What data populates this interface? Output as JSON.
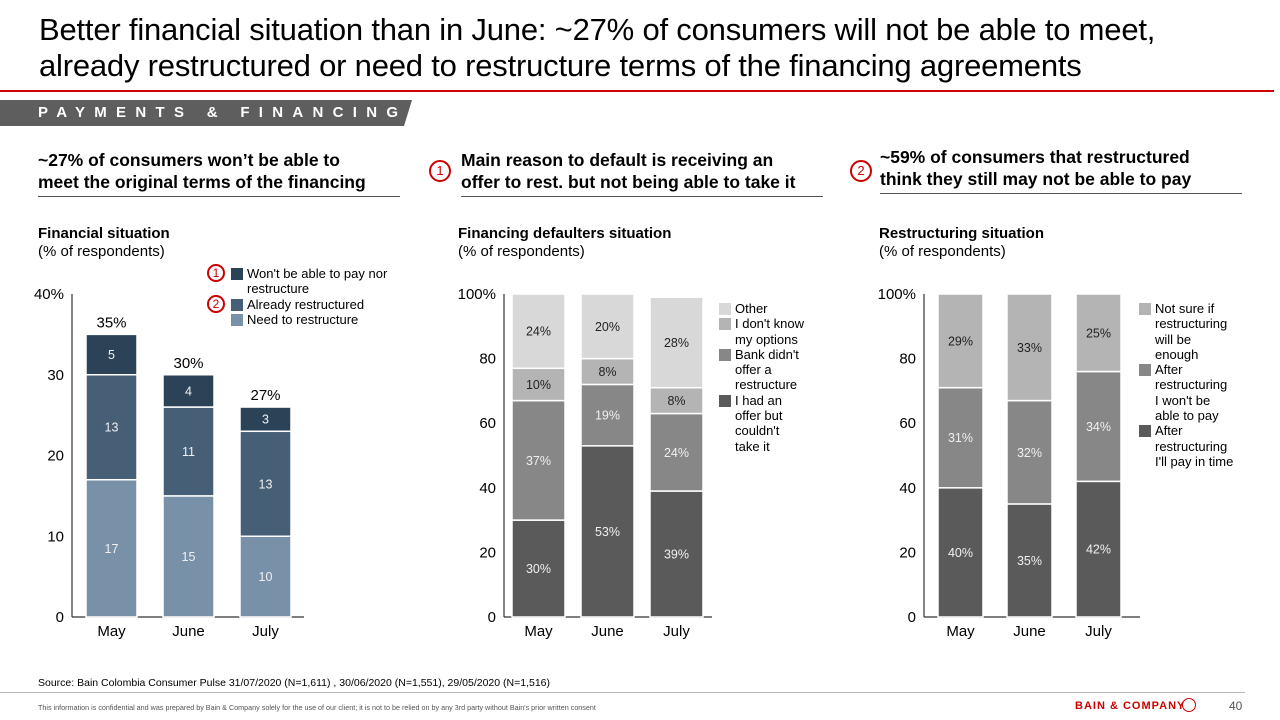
{
  "header": {
    "title_line1": "Better financial situation than in June: ~27% of consumers will not be able to meet,",
    "title_line2": "already restructured or need to restructure terms of the financing agreements",
    "section_tag": "PAYMENTS & FINANCING",
    "accent_color": "#cc0000"
  },
  "panels": [
    {
      "headline_line1": "~27% of consumers won’t be able to",
      "headline_line2": "meet the original terms of the financing",
      "badge": ""
    },
    {
      "headline_line1": "Main reason to default is receiving an",
      "headline_line2": "offer to rest. but not being able to take it",
      "badge": "1"
    },
    {
      "headline_line1": "~59% of consumers that restructured",
      "headline_line2": "think they still may not be able to pay",
      "badge": "2"
    }
  ],
  "chart_data": [
    {
      "type": "bar",
      "stacked": true,
      "title": "Financial situation",
      "subtitle": "(% of respondents)",
      "categories": [
        "May",
        "June",
        "July"
      ],
      "ylim": [
        0,
        40
      ],
      "yticks": [
        "0",
        "10",
        "20",
        "30",
        "40%"
      ],
      "totals": [
        "35%",
        "30%",
        "27%"
      ],
      "series": [
        {
          "name": "Need to restructure",
          "values": [
            17,
            15,
            10
          ],
          "labels": [
            "17",
            "15",
            "10"
          ],
          "color": "#7890a8",
          "badge": ""
        },
        {
          "name": "Already restructured",
          "values": [
            13,
            11,
            13
          ],
          "labels": [
            "13",
            "11",
            "13"
          ],
          "color": "#465f77",
          "badge": "2"
        },
        {
          "name": "Won't be able to pay nor restructure",
          "values": [
            5,
            4,
            3
          ],
          "labels": [
            "5",
            "4",
            "3"
          ],
          "color": "#2c4357",
          "badge": "1"
        }
      ],
      "legend_position": "top-right"
    },
    {
      "type": "bar",
      "stacked": true,
      "title": "Financing defaulters situation",
      "subtitle": "(% of respondents)",
      "categories": [
        "May",
        "June",
        "July"
      ],
      "ylim": [
        0,
        100
      ],
      "yticks": [
        "0",
        "20",
        "40",
        "60",
        "80",
        "100%"
      ],
      "series": [
        {
          "name": "I had an offer but couldn't take it",
          "values": [
            30,
            53,
            39
          ],
          "labels": [
            "30%",
            "53%",
            "39%"
          ],
          "color": "#5a5a5a"
        },
        {
          "name": "Bank didn't offer a restructure",
          "values": [
            37,
            19,
            24
          ],
          "labels": [
            "37%",
            "19%",
            "24%"
          ],
          "color": "#878787"
        },
        {
          "name": "I don't know my options",
          "values": [
            10,
            8,
            8
          ],
          "labels": [
            "10%",
            "8%",
            "8%"
          ],
          "color": "#b4b4b4"
        },
        {
          "name": "Other",
          "values": [
            24,
            20,
            28
          ],
          "labels": [
            "24%",
            "20%",
            "28%"
          ],
          "color": "#d8d8d8"
        }
      ],
      "legend_position": "right"
    },
    {
      "type": "bar",
      "stacked": true,
      "title": "Restructuring situation",
      "subtitle": "(% of respondents)",
      "categories": [
        "May",
        "June",
        "July"
      ],
      "ylim": [
        0,
        100
      ],
      "yticks": [
        "0",
        "20",
        "40",
        "60",
        "80",
        "100%"
      ],
      "series": [
        {
          "name": "After restructuring I'll pay in time",
          "values": [
            40,
            35,
            42
          ],
          "labels": [
            "40%",
            "35%",
            "42%"
          ],
          "color": "#5a5a5a"
        },
        {
          "name": "After restructuring I won't be able to pay",
          "values": [
            31,
            32,
            34
          ],
          "labels": [
            "31%",
            "32%",
            "34%"
          ],
          "color": "#878787"
        },
        {
          "name": "Not sure if restructuring will be enough",
          "values": [
            29,
            33,
            25
          ],
          "labels": [
            "29%",
            "33%",
            "25%"
          ],
          "color": "#b4b4b4"
        }
      ],
      "legend_position": "right"
    }
  ],
  "legends": {
    "chart1": [
      "Won't be able to pay nor restructure",
      "Already restructured",
      "Need to restructure"
    ],
    "chart2": [
      "Other",
      "I don't know my options",
      "Bank didn't offer a restructure",
      "I had an offer but couldn't take it"
    ],
    "chart3": [
      "Not sure if restructuring will be enough",
      "After restructuring I won't be able to pay",
      "After restructuring I'll pay in time"
    ]
  },
  "footer": {
    "source": "Source: Bain Colombia Consumer Pulse 31/07/2020 (N=1,611) , 30/06/2020 (N=1,551), 29/05/2020 (N=1,516)",
    "disclaimer": "This information is confidential and was prepared by Bain & Company solely for the use of our client; it is not to be relied on by any 3rd party without Bain's prior written consent",
    "brand": "BAIN & COMPANY",
    "page_number": "40"
  }
}
